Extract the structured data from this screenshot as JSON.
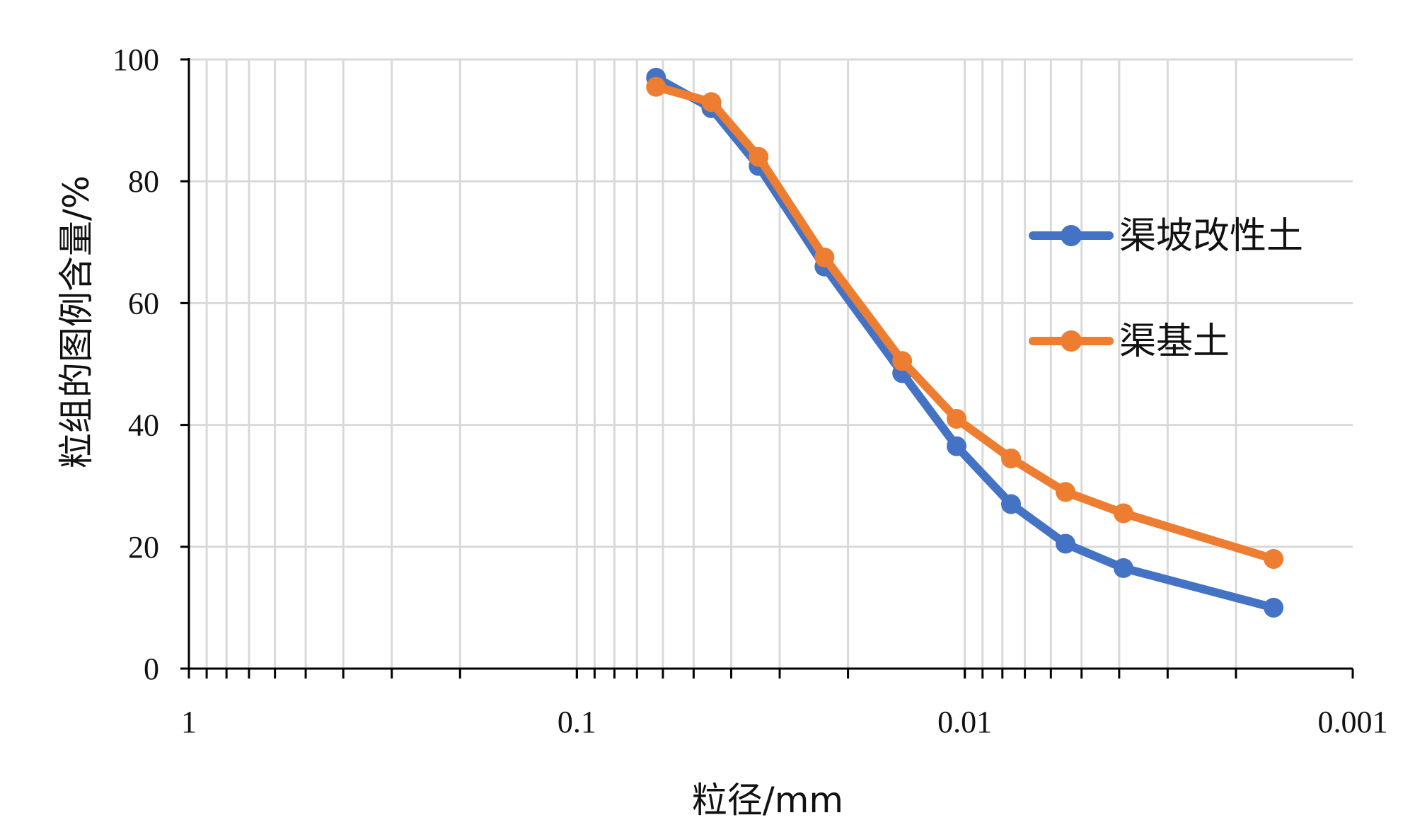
{
  "chart_data": {
    "type": "line",
    "xlabel": "粒径/mm",
    "ylabel": "粒组的图例含量/%",
    "x_scale": "log",
    "x_reversed": true,
    "xlim": [
      1,
      0.001
    ],
    "ylim": [
      0,
      100
    ],
    "y_ticks": [
      0,
      20,
      40,
      60,
      80,
      100
    ],
    "x_tick_labels": [
      "1",
      "0.1",
      "0.01",
      "0.001"
    ],
    "x_ticks": [
      1,
      0.1,
      0.01,
      0.001
    ],
    "grid": true,
    "legend_position": "right",
    "x": [
      0.0625,
      0.045,
      0.034,
      0.023,
      0.0145,
      0.0105,
      0.0076,
      0.0055,
      0.0039,
      0.0016
    ],
    "series": [
      {
        "name": "渠坡改性土",
        "color": "#4472C4",
        "values": [
          97,
          92,
          82.5,
          66,
          48.5,
          36.5,
          27,
          20.5,
          16.5,
          10
        ]
      },
      {
        "name": "渠基土",
        "color": "#ED7D31",
        "values": [
          95.5,
          93,
          84,
          67.5,
          50.5,
          41,
          34.5,
          29,
          25.5,
          18
        ]
      }
    ]
  }
}
